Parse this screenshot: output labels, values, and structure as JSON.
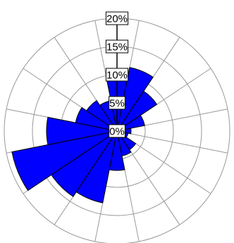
{
  "chart_data": {
    "type": "rose",
    "title": "",
    "sectors": 16,
    "direction_start_deg": 0,
    "clockwise": true,
    "radial_max": 20,
    "radial_ticks": [
      0,
      5,
      10,
      15,
      20
    ],
    "tick_labels": [
      "0%",
      "5%",
      "10%",
      "15%",
      "20%"
    ],
    "grid": true,
    "spokes": 16,
    "series": [
      {
        "values": [
          9.5,
          11.5,
          8.5,
          5.0,
          2.5,
          2.0,
          4.0,
          4.5,
          7.0,
          13.0,
          14.0,
          19.0,
          12.5,
          7.5,
          6.5,
          5.5
        ]
      }
    ],
    "colors": {
      "bar_fill": "#0000ff",
      "bar_stroke": "#000000",
      "grid": "#999999",
      "label_box_fill": "#ffffff",
      "label_box_stroke": "#000000"
    }
  }
}
